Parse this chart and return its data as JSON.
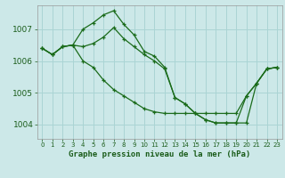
{
  "title": "Graphe pression niveau de la mer (hPa)",
  "bg_color": "#cce8e8",
  "grid_color": "#aad4d4",
  "line_color": "#1a6b1a",
  "xlabel_color": "#1a5c1a",
  "ylim": [
    1003.55,
    1007.75
  ],
  "xlim": [
    -0.5,
    23.5
  ],
  "yticks": [
    1004,
    1005,
    1006,
    1007
  ],
  "xticks": [
    0,
    1,
    2,
    3,
    4,
    5,
    6,
    7,
    8,
    9,
    10,
    11,
    12,
    13,
    14,
    15,
    16,
    17,
    18,
    19,
    20,
    21,
    22,
    23
  ],
  "line1": [
    1006.4,
    1006.2,
    1006.45,
    1006.5,
    1007.0,
    1007.2,
    1007.45,
    1007.58,
    1007.15,
    1006.82,
    1006.3,
    1006.15,
    1005.8,
    1004.85,
    1004.65,
    1004.35,
    1004.15,
    1004.05,
    1004.05,
    1004.05,
    1004.9,
    1005.3,
    1005.75,
    1005.8
  ],
  "line2": [
    1006.4,
    1006.2,
    1006.45,
    1006.5,
    1006.0,
    1005.8,
    1005.4,
    1005.1,
    1004.9,
    1004.7,
    1004.5,
    1004.4,
    1004.35,
    1004.35,
    1004.35,
    1004.35,
    1004.35,
    1004.35,
    1004.35,
    1004.35,
    1004.9,
    1005.3,
    1005.75,
    1005.8
  ],
  "line3": [
    1006.4,
    1006.2,
    1006.45,
    1006.5,
    1006.45,
    1006.55,
    1006.75,
    1007.05,
    1006.7,
    1006.45,
    1006.2,
    1006.0,
    1005.75,
    1004.85,
    1004.65,
    1004.35,
    1004.15,
    1004.05,
    1004.05,
    1004.05,
    1004.05,
    1005.3,
    1005.75,
    1005.8
  ]
}
